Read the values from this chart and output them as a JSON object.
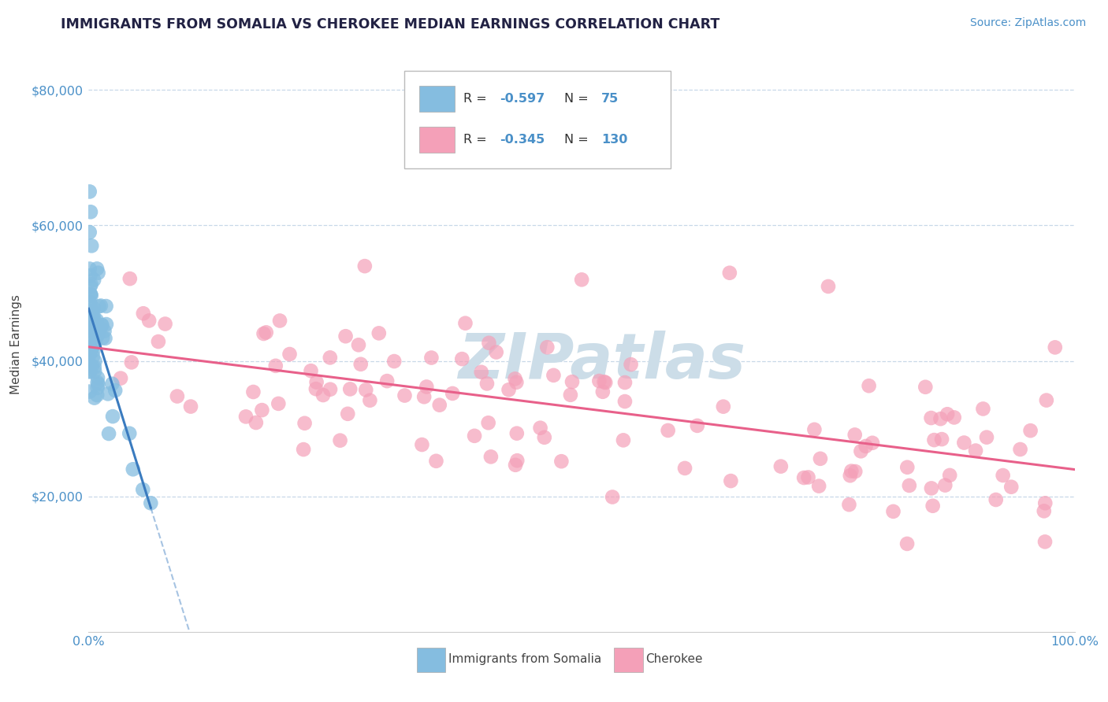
{
  "title": "IMMIGRANTS FROM SOMALIA VS CHEROKEE MEDIAN EARNINGS CORRELATION CHART",
  "source_text": "Source: ZipAtlas.com",
  "ylabel": "Median Earnings",
  "xlim": [
    0.0,
    1.0
  ],
  "ylim": [
    0,
    85000
  ],
  "legend_r1": "-0.597",
  "legend_n1": "75",
  "legend_r2": "-0.345",
  "legend_n2": "130",
  "color_somalia": "#85bde0",
  "color_cherokee": "#f4a0b8",
  "color_somalia_line": "#3a7bbf",
  "color_cherokee_line": "#e8608a",
  "watermark_color": "#ccdde8",
  "background_color": "#ffffff",
  "grid_color": "#c8d8e8",
  "title_color": "#222244",
  "title_fontsize": 12.5,
  "ylabel_color": "#444444",
  "ytick_color": "#4a90c8",
  "xtick_color": "#4a90c8",
  "somalia_seed": 101,
  "cherokee_seed": 202
}
